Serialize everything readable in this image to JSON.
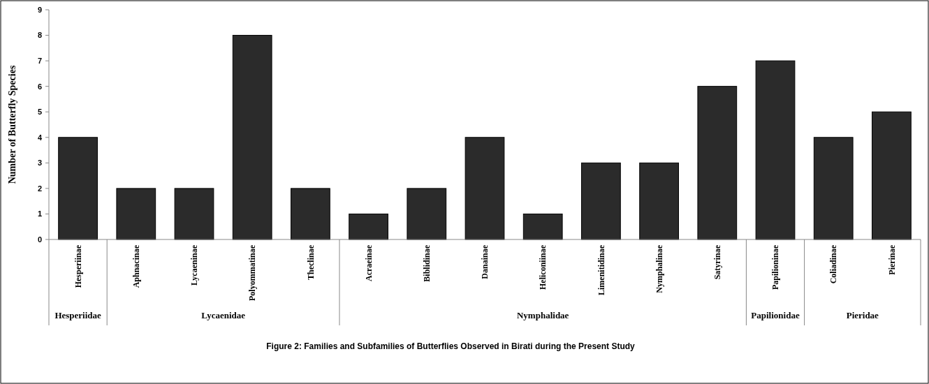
{
  "chart_data": {
    "type": "bar",
    "title": "Figure 2: Families and Subfamilies of Butterflies Observed in Birati during  the Present Study",
    "ylabel": "Number of Butterfly Species",
    "categories": [
      "Hesperiinae",
      "Aphnacinae",
      "Lycaeninae",
      "Polyommatinae",
      "Theclinae",
      "Acraeinae",
      "Biblidinae",
      "Danainae",
      "Heliconiinae",
      "Limenitidinae",
      "Nymphalinae",
      "Satyrinae",
      "Papilioninae",
      "Coliadinae",
      "Pierinae"
    ],
    "values": [
      4,
      2,
      2,
      8,
      2,
      1,
      2,
      4,
      1,
      3,
      3,
      6,
      7,
      4,
      5
    ],
    "color": "#2b2b2b",
    "ylim": [
      0,
      9
    ],
    "yticks": [
      0,
      1,
      2,
      3,
      4,
      5,
      6,
      7,
      8,
      9
    ],
    "grid": false,
    "annotations": [
      "Hesperiidae",
      "Lycaenidae",
      "Nymphalidae",
      "Papilionidae",
      "Pieridae"
    ]
  }
}
